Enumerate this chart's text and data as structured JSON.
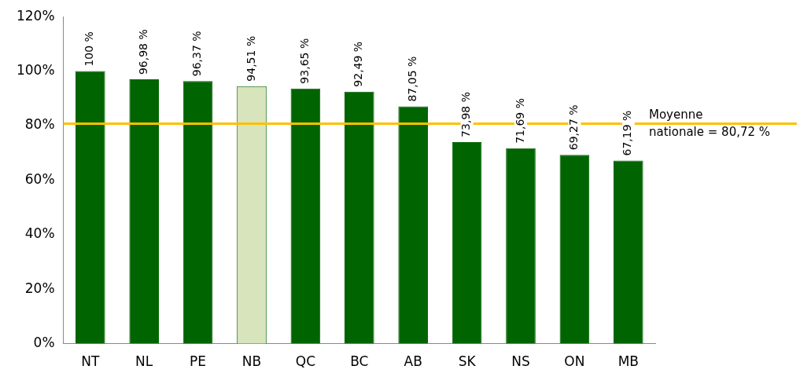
{
  "chart_data": {
    "type": "bar",
    "categories": [
      "NT",
      "NL",
      "PE",
      "NB",
      "QC",
      "BC",
      "AB",
      "SK",
      "NS",
      "ON",
      "MB"
    ],
    "values": [
      100,
      96.98,
      96.37,
      94.51,
      93.65,
      92.49,
      87.05,
      73.98,
      71.69,
      69.27,
      67.19
    ],
    "colors": [
      "#006400",
      "#006400",
      "#006400",
      "#d8e4bc",
      "#006400",
      "#006400",
      "#006400",
      "#006400",
      "#006400",
      "#006400",
      "#006400"
    ],
    "value_labels": [
      "100 %",
      "96,98 %",
      "96,37 %",
      "94,51 %",
      "93,65 %",
      "92,49 %",
      "87,05 %",
      "73,98 %",
      "71,69 %",
      "69,27 %",
      "67,19 %"
    ],
    "ylim": [
      0,
      120
    ],
    "yticks": [
      {
        "value": 0,
        "label": "0%"
      },
      {
        "value": 20,
        "label": "20%"
      },
      {
        "value": 40,
        "label": "40%"
      },
      {
        "value": 60,
        "label": "60%"
      },
      {
        "value": 80,
        "label": "80%"
      },
      {
        "value": 100,
        "label": "100%"
      },
      {
        "value": 120,
        "label": "120%"
      }
    ],
    "ref_lines": [
      {
        "axis": "y",
        "value": 80.72,
        "label": "Moyenne\nnationale = 80,72 %",
        "color": "#ffc000"
      }
    ],
    "grid": false,
    "legend": false
  }
}
